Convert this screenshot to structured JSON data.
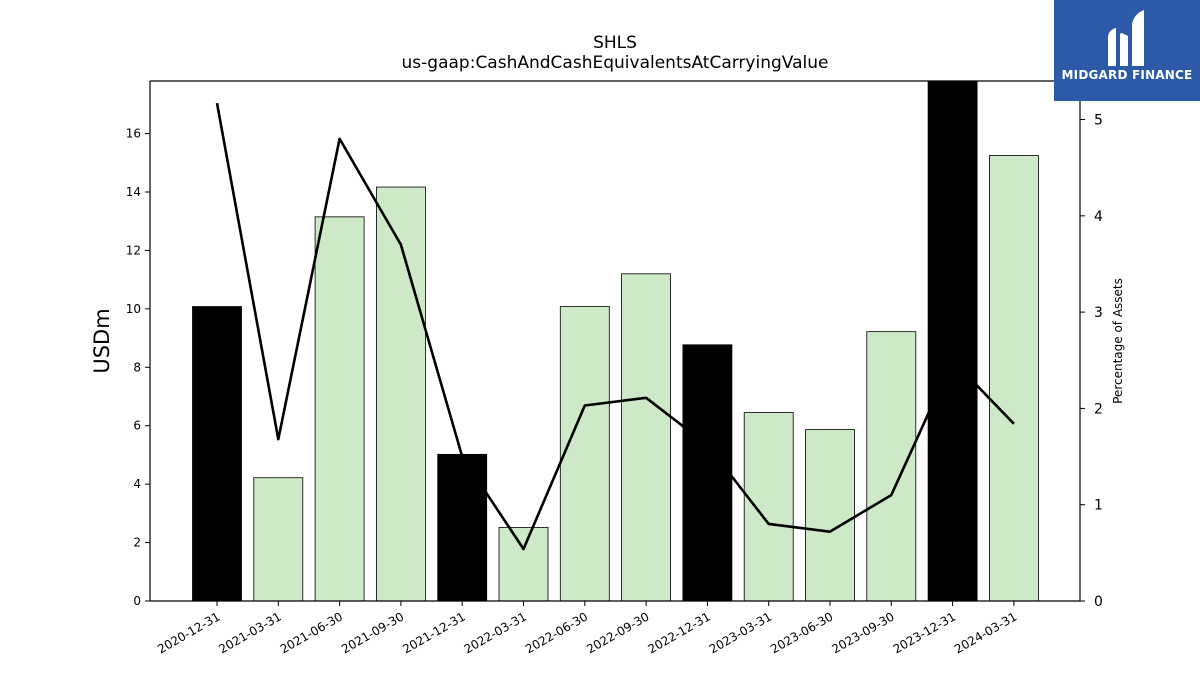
{
  "chart_data": {
    "type": "bar",
    "title": "SHLS",
    "subtitle": "us-gaap:CashAndCashEquivalentsAtCarryingValue",
    "ylabel": "USDm",
    "y2label": "Percentage of Assets",
    "categories": [
      "2020-12-31",
      "2021-03-31",
      "2021-06-30",
      "2021-09-30",
      "2021-12-31",
      "2022-03-31",
      "2022-06-30",
      "2022-09-30",
      "2022-12-31",
      "2023-03-31",
      "2023-06-30",
      "2023-09-30",
      "2023-12-31",
      "2024-03-31"
    ],
    "series": [
      {
        "kind": "bar",
        "axis": "left",
        "values": [
          10.08,
          4.22,
          13.15,
          14.17,
          5.02,
          2.52,
          10.08,
          11.2,
          8.77,
          6.45,
          5.87,
          9.22,
          17.8,
          15.25
        ],
        "highlight": [
          true,
          false,
          false,
          false,
          true,
          false,
          false,
          false,
          true,
          false,
          false,
          false,
          true,
          false
        ],
        "colors": {
          "normal": "#cde9c7",
          "highlight": "#000000"
        }
      },
      {
        "kind": "line",
        "axis": "right",
        "color": "#000000",
        "values": [
          5.17,
          1.68,
          4.8,
          3.7,
          1.5,
          0.54,
          2.03,
          2.11,
          1.62,
          0.8,
          0.72,
          1.1,
          2.5,
          1.84
        ]
      }
    ],
    "ylim": [
      0,
      17.8
    ],
    "y2lim": [
      0,
      5.4
    ],
    "yticks": [
      0,
      2,
      4,
      6,
      8,
      10,
      12,
      14,
      16
    ],
    "y2ticks": [
      0,
      1,
      2,
      3,
      4,
      5
    ],
    "grid": false
  },
  "logo": {
    "text": "MIDGARD FINANCE",
    "icon": "midgard-logo-icon",
    "background": "#2c5aa8"
  }
}
